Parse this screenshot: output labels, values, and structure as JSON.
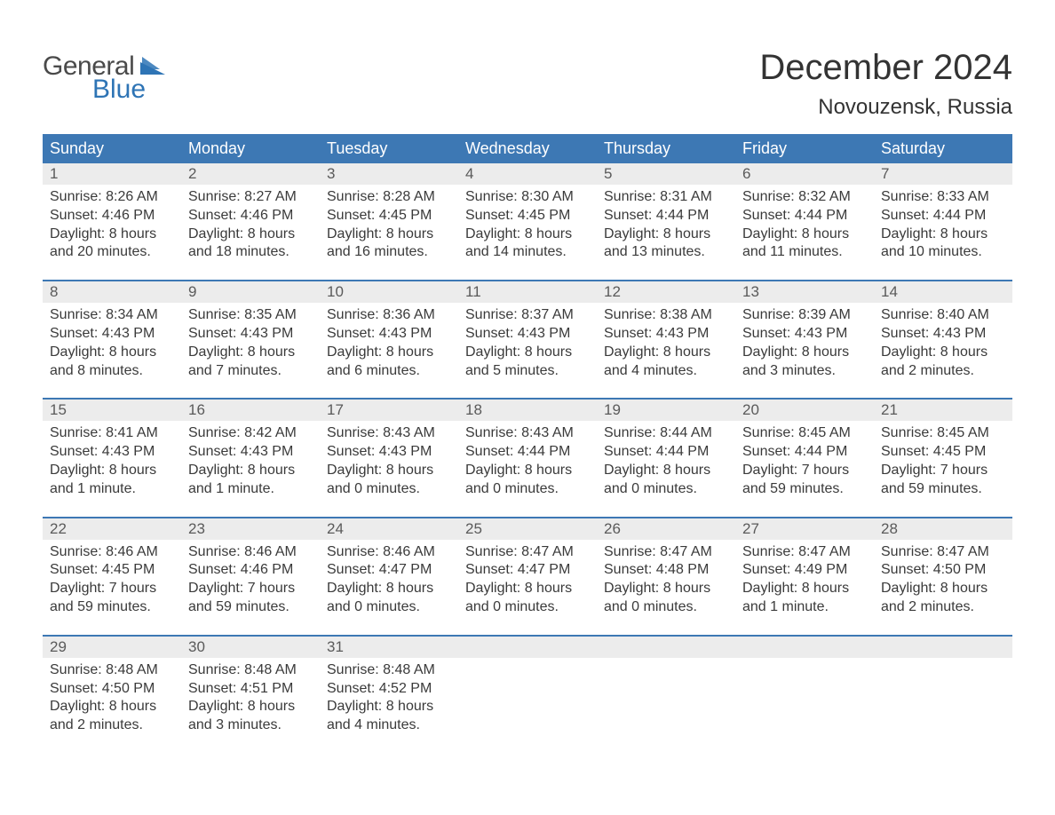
{
  "brand": {
    "word1": "General",
    "word2": "Blue"
  },
  "title": "December 2024",
  "location": "Novouzensk, Russia",
  "colors": {
    "header_bg": "#3d78b4",
    "header_text": "#ffffff",
    "daynum_bg": "#ececec",
    "text": "#333333",
    "brand_blue": "#2e74b5"
  },
  "layout": {
    "columns": 7,
    "font_family": "Arial, Helvetica, sans-serif",
    "title_fontsize": 40,
    "location_fontsize": 24,
    "header_fontsize": 18,
    "daynum_fontsize": 17,
    "body_fontsize": 16
  },
  "weekdays": [
    "Sunday",
    "Monday",
    "Tuesday",
    "Wednesday",
    "Thursday",
    "Friday",
    "Saturday"
  ],
  "weeks": [
    [
      {
        "n": "1",
        "sr": "Sunrise: 8:26 AM",
        "ss": "Sunset: 4:46 PM",
        "d1": "Daylight: 8 hours",
        "d2": "and 20 minutes."
      },
      {
        "n": "2",
        "sr": "Sunrise: 8:27 AM",
        "ss": "Sunset: 4:46 PM",
        "d1": "Daylight: 8 hours",
        "d2": "and 18 minutes."
      },
      {
        "n": "3",
        "sr": "Sunrise: 8:28 AM",
        "ss": "Sunset: 4:45 PM",
        "d1": "Daylight: 8 hours",
        "d2": "and 16 minutes."
      },
      {
        "n": "4",
        "sr": "Sunrise: 8:30 AM",
        "ss": "Sunset: 4:45 PM",
        "d1": "Daylight: 8 hours",
        "d2": "and 14 minutes."
      },
      {
        "n": "5",
        "sr": "Sunrise: 8:31 AM",
        "ss": "Sunset: 4:44 PM",
        "d1": "Daylight: 8 hours",
        "d2": "and 13 minutes."
      },
      {
        "n": "6",
        "sr": "Sunrise: 8:32 AM",
        "ss": "Sunset: 4:44 PM",
        "d1": "Daylight: 8 hours",
        "d2": "and 11 minutes."
      },
      {
        "n": "7",
        "sr": "Sunrise: 8:33 AM",
        "ss": "Sunset: 4:44 PM",
        "d1": "Daylight: 8 hours",
        "d2": "and 10 minutes."
      }
    ],
    [
      {
        "n": "8",
        "sr": "Sunrise: 8:34 AM",
        "ss": "Sunset: 4:43 PM",
        "d1": "Daylight: 8 hours",
        "d2": "and 8 minutes."
      },
      {
        "n": "9",
        "sr": "Sunrise: 8:35 AM",
        "ss": "Sunset: 4:43 PM",
        "d1": "Daylight: 8 hours",
        "d2": "and 7 minutes."
      },
      {
        "n": "10",
        "sr": "Sunrise: 8:36 AM",
        "ss": "Sunset: 4:43 PM",
        "d1": "Daylight: 8 hours",
        "d2": "and 6 minutes."
      },
      {
        "n": "11",
        "sr": "Sunrise: 8:37 AM",
        "ss": "Sunset: 4:43 PM",
        "d1": "Daylight: 8 hours",
        "d2": "and 5 minutes."
      },
      {
        "n": "12",
        "sr": "Sunrise: 8:38 AM",
        "ss": "Sunset: 4:43 PM",
        "d1": "Daylight: 8 hours",
        "d2": "and 4 minutes."
      },
      {
        "n": "13",
        "sr": "Sunrise: 8:39 AM",
        "ss": "Sunset: 4:43 PM",
        "d1": "Daylight: 8 hours",
        "d2": "and 3 minutes."
      },
      {
        "n": "14",
        "sr": "Sunrise: 8:40 AM",
        "ss": "Sunset: 4:43 PM",
        "d1": "Daylight: 8 hours",
        "d2": "and 2 minutes."
      }
    ],
    [
      {
        "n": "15",
        "sr": "Sunrise: 8:41 AM",
        "ss": "Sunset: 4:43 PM",
        "d1": "Daylight: 8 hours",
        "d2": "and 1 minute."
      },
      {
        "n": "16",
        "sr": "Sunrise: 8:42 AM",
        "ss": "Sunset: 4:43 PM",
        "d1": "Daylight: 8 hours",
        "d2": "and 1 minute."
      },
      {
        "n": "17",
        "sr": "Sunrise: 8:43 AM",
        "ss": "Sunset: 4:43 PM",
        "d1": "Daylight: 8 hours",
        "d2": "and 0 minutes."
      },
      {
        "n": "18",
        "sr": "Sunrise: 8:43 AM",
        "ss": "Sunset: 4:44 PM",
        "d1": "Daylight: 8 hours",
        "d2": "and 0 minutes."
      },
      {
        "n": "19",
        "sr": "Sunrise: 8:44 AM",
        "ss": "Sunset: 4:44 PM",
        "d1": "Daylight: 8 hours",
        "d2": "and 0 minutes."
      },
      {
        "n": "20",
        "sr": "Sunrise: 8:45 AM",
        "ss": "Sunset: 4:44 PM",
        "d1": "Daylight: 7 hours",
        "d2": "and 59 minutes."
      },
      {
        "n": "21",
        "sr": "Sunrise: 8:45 AM",
        "ss": "Sunset: 4:45 PM",
        "d1": "Daylight: 7 hours",
        "d2": "and 59 minutes."
      }
    ],
    [
      {
        "n": "22",
        "sr": "Sunrise: 8:46 AM",
        "ss": "Sunset: 4:45 PM",
        "d1": "Daylight: 7 hours",
        "d2": "and 59 minutes."
      },
      {
        "n": "23",
        "sr": "Sunrise: 8:46 AM",
        "ss": "Sunset: 4:46 PM",
        "d1": "Daylight: 7 hours",
        "d2": "and 59 minutes."
      },
      {
        "n": "24",
        "sr": "Sunrise: 8:46 AM",
        "ss": "Sunset: 4:47 PM",
        "d1": "Daylight: 8 hours",
        "d2": "and 0 minutes."
      },
      {
        "n": "25",
        "sr": "Sunrise: 8:47 AM",
        "ss": "Sunset: 4:47 PM",
        "d1": "Daylight: 8 hours",
        "d2": "and 0 minutes."
      },
      {
        "n": "26",
        "sr": "Sunrise: 8:47 AM",
        "ss": "Sunset: 4:48 PM",
        "d1": "Daylight: 8 hours",
        "d2": "and 0 minutes."
      },
      {
        "n": "27",
        "sr": "Sunrise: 8:47 AM",
        "ss": "Sunset: 4:49 PM",
        "d1": "Daylight: 8 hours",
        "d2": "and 1 minute."
      },
      {
        "n": "28",
        "sr": "Sunrise: 8:47 AM",
        "ss": "Sunset: 4:50 PM",
        "d1": "Daylight: 8 hours",
        "d2": "and 2 minutes."
      }
    ],
    [
      {
        "n": "29",
        "sr": "Sunrise: 8:48 AM",
        "ss": "Sunset: 4:50 PM",
        "d1": "Daylight: 8 hours",
        "d2": "and 2 minutes."
      },
      {
        "n": "30",
        "sr": "Sunrise: 8:48 AM",
        "ss": "Sunset: 4:51 PM",
        "d1": "Daylight: 8 hours",
        "d2": "and 3 minutes."
      },
      {
        "n": "31",
        "sr": "Sunrise: 8:48 AM",
        "ss": "Sunset: 4:52 PM",
        "d1": "Daylight: 8 hours",
        "d2": "and 4 minutes."
      },
      null,
      null,
      null,
      null
    ]
  ]
}
